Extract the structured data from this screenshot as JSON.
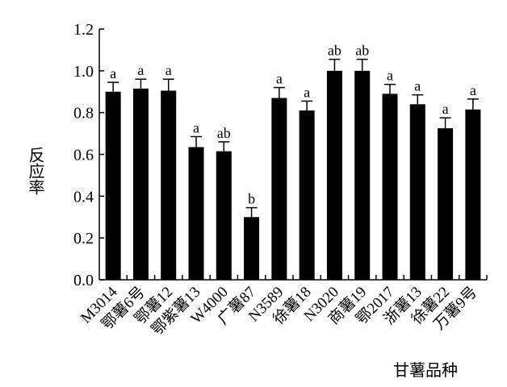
{
  "chart_data": {
    "type": "bar",
    "title": "",
    "xlabel": "甘薯品种",
    "ylabel": "反应率",
    "ylim": [
      0.0,
      1.2
    ],
    "yticks": [
      "0.0",
      "0.2",
      "0.4",
      "0.6",
      "0.8",
      "1.0",
      "1.2"
    ],
    "ytick_values": [
      0.0,
      0.2,
      0.4,
      0.6,
      0.8,
      1.0,
      1.2
    ],
    "grid": false,
    "bar_color": "#000000",
    "categories": [
      "M3014",
      "鄂薯6号",
      "鄂薯12",
      "鄂紫薯13",
      "W4000",
      "广薯87",
      "N3589",
      "徐薯18",
      "N3020",
      "商薯19",
      "鄂2017",
      "浙薯13",
      "徐薯22",
      "万薯9号"
    ],
    "values": [
      0.9,
      0.915,
      0.905,
      0.635,
      0.615,
      0.3,
      0.87,
      0.81,
      1.0,
      1.0,
      0.89,
      0.84,
      0.725,
      0.815
    ],
    "errors": [
      0.045,
      0.045,
      0.055,
      0.05,
      0.045,
      0.045,
      0.05,
      0.045,
      0.055,
      0.055,
      0.045,
      0.045,
      0.05,
      0.05
    ],
    "significance": [
      "a",
      "a",
      "a",
      "a",
      "ab",
      "b",
      "a",
      "a",
      "ab",
      "ab",
      "a",
      "a",
      "a",
      "a"
    ]
  }
}
